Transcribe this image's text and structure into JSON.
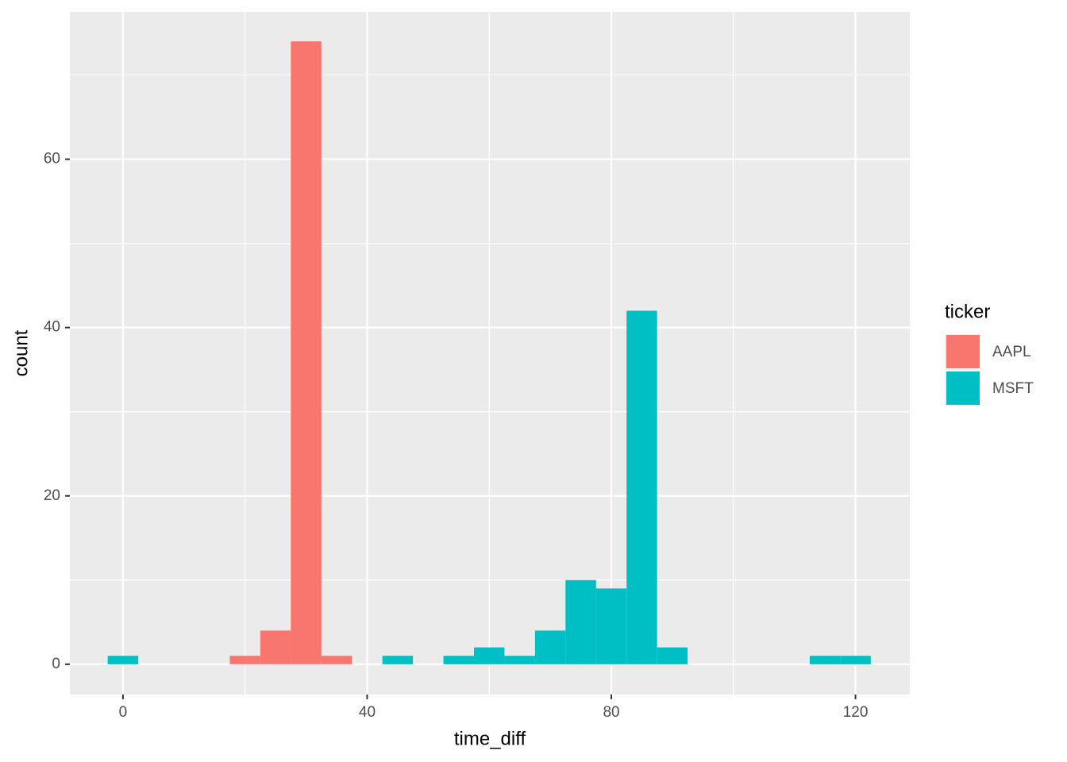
{
  "chart_data": {
    "type": "histogram",
    "x_label": "time_diff",
    "y_label": "count",
    "bins": [
      -2.5,
      2.5,
      7.5,
      12.5,
      17.5,
      22.5,
      27.5,
      32.5,
      37.5,
      42.5,
      47.5,
      52.5,
      57.5,
      62.5,
      67.5,
      72.5,
      77.5,
      82.5,
      87.5,
      92.5,
      97.5,
      102.5,
      107.5,
      112.5,
      117.5,
      122.5
    ],
    "series": [
      {
        "name": "AAPL",
        "color": "#f8766d",
        "values": [
          0,
          0,
          0,
          0,
          1,
          4,
          74,
          1,
          0,
          0,
          0,
          0,
          0,
          0,
          0,
          0,
          0,
          0,
          0,
          0,
          0,
          0,
          0,
          0,
          0
        ]
      },
      {
        "name": "MSFT",
        "color": "#00bfc4",
        "values": [
          1,
          0,
          0,
          0,
          0,
          0,
          0,
          0,
          0,
          1,
          0,
          1,
          2,
          1,
          4,
          10,
          9,
          42,
          2,
          0,
          0,
          0,
          0,
          1,
          1
        ]
      }
    ],
    "stacked": true,
    "legend_title": "ticker",
    "legend_position": "right",
    "xlim": [
      -8.7,
      128.9
    ],
    "xticks": [
      0,
      40,
      80,
      120
    ],
    "ylim": [
      -3.6,
      77.5
    ],
    "yticks": [
      0,
      20,
      40,
      60
    ],
    "grid": true
  }
}
